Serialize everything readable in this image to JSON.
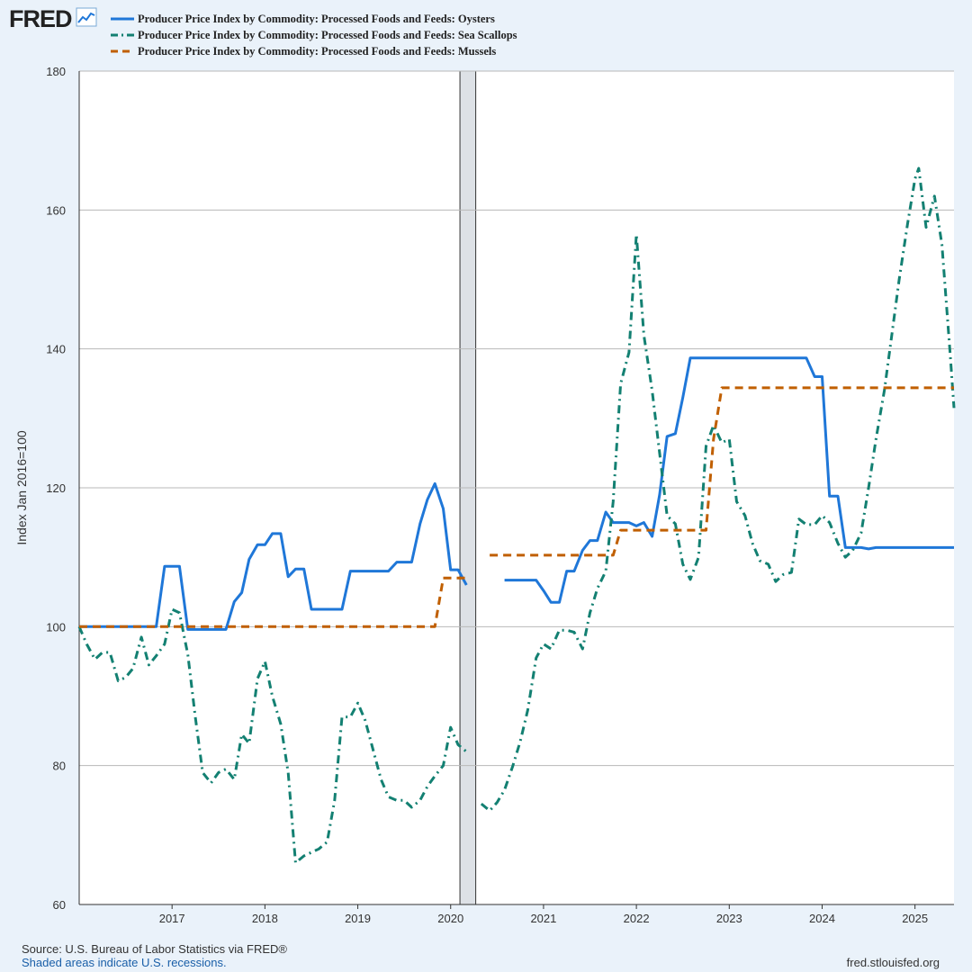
{
  "brand": {
    "name": "FRED",
    "icon": "line-chart-icon"
  },
  "chart_data": {
    "type": "line",
    "title": "",
    "ylabel": "Index Jan 2016=100",
    "xlabel": "",
    "ylim": [
      60,
      180
    ],
    "yticks": [
      60,
      80,
      100,
      120,
      140,
      160,
      180
    ],
    "xlim": [
      2016.0,
      2025.42
    ],
    "xticks": [
      2017,
      2018,
      2019,
      2020,
      2021,
      2022,
      2023,
      2024,
      2025
    ],
    "grid": "horizontal",
    "legend": "top",
    "recessions": [
      {
        "start": 2020.1,
        "end": 2020.27
      }
    ],
    "series": [
      {
        "name": "Producer Price Index by Commodity: Processed Foods and Feeds: Oysters",
        "color": "#1f77d8",
        "dash": "solid",
        "points": [
          [
            2016.0,
            100
          ],
          [
            2016.08,
            100
          ],
          [
            2016.17,
            100
          ],
          [
            2016.25,
            100
          ],
          [
            2016.33,
            100
          ],
          [
            2016.42,
            100
          ],
          [
            2016.5,
            100
          ],
          [
            2016.58,
            100
          ],
          [
            2016.67,
            100
          ],
          [
            2016.75,
            100
          ],
          [
            2016.83,
            100
          ],
          [
            2016.92,
            108.7
          ],
          [
            2017.0,
            108.7
          ],
          [
            2017.08,
            108.7
          ],
          [
            2017.17,
            99.6
          ],
          [
            2017.25,
            99.6
          ],
          [
            2017.33,
            99.6
          ],
          [
            2017.42,
            99.6
          ],
          [
            2017.5,
            99.6
          ],
          [
            2017.58,
            99.6
          ],
          [
            2017.67,
            103.6
          ],
          [
            2017.75,
            104.9
          ],
          [
            2017.83,
            109.7
          ],
          [
            2017.92,
            111.8
          ],
          [
            2018.0,
            111.8
          ],
          [
            2018.08,
            113.4
          ],
          [
            2018.17,
            113.4
          ],
          [
            2018.25,
            107.2
          ],
          [
            2018.33,
            108.3
          ],
          [
            2018.42,
            108.3
          ],
          [
            2018.5,
            102.5
          ],
          [
            2018.58,
            102.5
          ],
          [
            2018.67,
            102.5
          ],
          [
            2018.75,
            102.5
          ],
          [
            2018.83,
            102.5
          ],
          [
            2018.92,
            108.0
          ],
          [
            2019.0,
            108.0
          ],
          [
            2019.08,
            108.0
          ],
          [
            2019.17,
            108.0
          ],
          [
            2019.25,
            108.0
          ],
          [
            2019.33,
            108.0
          ],
          [
            2019.42,
            109.3
          ],
          [
            2019.5,
            109.3
          ],
          [
            2019.58,
            109.3
          ],
          [
            2019.67,
            114.8
          ],
          [
            2019.75,
            118.3
          ],
          [
            2019.83,
            120.6
          ],
          [
            2019.92,
            117.0
          ],
          [
            2020.0,
            108.2
          ],
          [
            2020.08,
            108.2
          ],
          [
            2020.17,
            106.0
          ],
          null,
          [
            2020.58,
            106.7
          ],
          [
            2020.67,
            106.7
          ],
          [
            2020.75,
            106.7
          ],
          [
            2020.83,
            106.7
          ],
          [
            2020.92,
            106.7
          ],
          [
            2021.0,
            105.2
          ],
          [
            2021.08,
            103.5
          ],
          [
            2021.17,
            103.5
          ],
          [
            2021.25,
            108.0
          ],
          [
            2021.33,
            108.0
          ],
          [
            2021.42,
            111.0
          ],
          [
            2021.5,
            112.4
          ],
          [
            2021.58,
            112.4
          ],
          [
            2021.67,
            116.5
          ],
          [
            2021.75,
            115.0
          ],
          [
            2021.83,
            115.0
          ],
          [
            2021.92,
            115.0
          ],
          [
            2022.0,
            114.5
          ],
          [
            2022.08,
            115.0
          ],
          [
            2022.17,
            113.0
          ],
          [
            2022.25,
            119.0
          ],
          [
            2022.33,
            127.4
          ],
          [
            2022.42,
            127.8
          ],
          [
            2022.5,
            133.0
          ],
          [
            2022.58,
            138.7
          ],
          [
            2022.67,
            138.7
          ],
          [
            2022.75,
            138.7
          ],
          [
            2022.83,
            138.7
          ],
          [
            2022.92,
            138.7
          ],
          [
            2023.0,
            138.7
          ],
          [
            2023.08,
            138.7
          ],
          [
            2023.17,
            138.7
          ],
          [
            2023.25,
            138.7
          ],
          [
            2023.33,
            138.7
          ],
          [
            2023.42,
            138.7
          ],
          [
            2023.5,
            138.7
          ],
          [
            2023.58,
            138.7
          ],
          [
            2023.67,
            138.7
          ],
          [
            2023.75,
            138.7
          ],
          [
            2023.83,
            138.7
          ],
          [
            2023.92,
            136.0
          ],
          [
            2024.0,
            136.0
          ],
          [
            2024.08,
            118.8
          ],
          [
            2024.17,
            118.8
          ],
          [
            2024.25,
            111.4
          ],
          [
            2024.33,
            111.4
          ],
          [
            2024.42,
            111.4
          ],
          [
            2024.5,
            111.2
          ],
          [
            2024.58,
            111.4
          ],
          [
            2024.67,
            111.4
          ],
          [
            2024.75,
            111.4
          ],
          [
            2024.83,
            111.4
          ],
          [
            2024.92,
            111.4
          ],
          [
            2025.0,
            111.4
          ],
          [
            2025.08,
            111.4
          ],
          [
            2025.17,
            111.4
          ],
          [
            2025.25,
            111.4
          ],
          [
            2025.33,
            111.4
          ],
          [
            2025.42,
            111.4
          ]
        ]
      },
      {
        "name": "Producer Price Index by Commodity: Processed Foods and Feeds: Sea Scallops",
        "color": "#138072",
        "dash": "dashdot",
        "points": [
          [
            2016.0,
            100
          ],
          [
            2016.08,
            97.5
          ],
          [
            2016.17,
            95.3
          ],
          [
            2016.25,
            96.3
          ],
          [
            2016.33,
            96.3
          ],
          [
            2016.42,
            92.2
          ],
          [
            2016.5,
            92.7
          ],
          [
            2016.58,
            94.0
          ],
          [
            2016.67,
            98.5
          ],
          [
            2016.75,
            94.5
          ],
          [
            2016.83,
            95.8
          ],
          [
            2016.92,
            97.5
          ],
          [
            2017.0,
            102.5
          ],
          [
            2017.08,
            102.0
          ],
          [
            2017.17,
            96.0
          ],
          [
            2017.25,
            87.0
          ],
          [
            2017.33,
            79.0
          ],
          [
            2017.42,
            77.5
          ],
          [
            2017.5,
            79.0
          ],
          [
            2017.58,
            79.5
          ],
          [
            2017.67,
            78.0
          ],
          [
            2017.75,
            84.5
          ],
          [
            2017.83,
            83.2
          ],
          [
            2017.92,
            92.5
          ],
          [
            2018.0,
            95.0
          ],
          [
            2018.08,
            90.0
          ],
          [
            2018.17,
            86.0
          ],
          [
            2018.25,
            79.0
          ],
          [
            2018.33,
            66.0
          ],
          [
            2018.42,
            67.0
          ],
          [
            2018.5,
            67.5
          ],
          [
            2018.58,
            68.0
          ],
          [
            2018.67,
            69.0
          ],
          [
            2018.75,
            75.0
          ],
          [
            2018.83,
            87.0
          ],
          [
            2018.92,
            87.0
          ],
          [
            2019.0,
            89.0
          ],
          [
            2019.08,
            86.5
          ],
          [
            2019.17,
            82.0
          ],
          [
            2019.25,
            78.0
          ],
          [
            2019.33,
            75.5
          ],
          [
            2019.42,
            75.0
          ],
          [
            2019.5,
            75.0
          ],
          [
            2019.58,
            74.0
          ],
          [
            2019.67,
            75.0
          ],
          [
            2019.75,
            77.0
          ],
          [
            2019.83,
            78.5
          ],
          [
            2019.92,
            80.0
          ],
          [
            2020.0,
            85.5
          ],
          [
            2020.08,
            83.0
          ],
          [
            2020.17,
            82.0
          ],
          null,
          [
            2020.33,
            74.5
          ],
          [
            2020.42,
            73.5
          ],
          [
            2020.5,
            74.7
          ],
          [
            2020.58,
            76.5
          ],
          [
            2020.67,
            80.0
          ],
          [
            2020.75,
            83.5
          ],
          [
            2020.83,
            88.0
          ],
          [
            2020.92,
            95.5
          ],
          [
            2021.0,
            97.5
          ],
          [
            2021.08,
            96.8
          ],
          [
            2021.17,
            99.5
          ],
          [
            2021.25,
            99.5
          ],
          [
            2021.33,
            99.2
          ],
          [
            2021.42,
            96.8
          ],
          [
            2021.5,
            102.0
          ],
          [
            2021.58,
            105.5
          ],
          [
            2021.67,
            108.0
          ],
          [
            2021.75,
            118.0
          ],
          [
            2021.83,
            135.0
          ],
          [
            2021.92,
            139.5
          ],
          [
            2022.0,
            156.5
          ],
          [
            2022.08,
            142.0
          ],
          [
            2022.17,
            134.0
          ],
          [
            2022.25,
            125.0
          ],
          [
            2022.33,
            116.0
          ],
          [
            2022.42,
            114.8
          ],
          [
            2022.5,
            109.0
          ],
          [
            2022.58,
            106.8
          ],
          [
            2022.67,
            110.0
          ],
          [
            2022.75,
            126.0
          ],
          [
            2022.83,
            129.0
          ],
          [
            2022.92,
            126.5
          ],
          [
            2023.0,
            127.0
          ],
          [
            2023.08,
            118.0
          ],
          [
            2023.17,
            116.0
          ],
          [
            2023.25,
            112.0
          ],
          [
            2023.33,
            109.5
          ],
          [
            2023.42,
            109.0
          ],
          [
            2023.5,
            106.5
          ],
          [
            2023.58,
            107.5
          ],
          [
            2023.67,
            107.8
          ],
          [
            2023.75,
            115.5
          ],
          [
            2023.83,
            114.7
          ],
          [
            2023.92,
            114.7
          ],
          [
            2024.0,
            116.0
          ],
          [
            2024.08,
            115.0
          ],
          [
            2024.17,
            112.0
          ],
          [
            2024.25,
            110.0
          ],
          [
            2024.33,
            111.0
          ],
          [
            2024.42,
            113.5
          ],
          [
            2024.5,
            120.0
          ],
          [
            2024.58,
            127.0
          ],
          [
            2024.67,
            134.0
          ],
          [
            2024.75,
            142.0
          ],
          [
            2024.83,
            150.0
          ],
          [
            2024.92,
            158.0
          ],
          [
            2025.0,
            164.5
          ],
          [
            2025.04,
            166.0
          ],
          [
            2025.12,
            157.5
          ],
          [
            2025.21,
            162.0
          ],
          [
            2025.29,
            155.0
          ],
          [
            2025.38,
            139.0
          ],
          [
            2025.42,
            131.5
          ]
        ]
      },
      {
        "name": "Producer Price Index by Commodity: Processed Foods and Feeds: Mussels",
        "color": "#c05f00",
        "dash": "dashed",
        "points": [
          [
            2016.0,
            100
          ],
          [
            2019.83,
            100
          ],
          [
            2019.92,
            107.0
          ],
          [
            2020.17,
            107.0
          ],
          null,
          [
            2020.42,
            110.3
          ],
          [
            2021.75,
            110.3
          ],
          [
            2021.83,
            113.9
          ],
          [
            2022.75,
            113.9
          ],
          [
            2022.83,
            127.0
          ],
          [
            2022.92,
            134.4
          ],
          [
            2025.42,
            134.4
          ]
        ]
      }
    ]
  },
  "footer": {
    "source": "Source: U.S. Bureau of Labor Statistics via FRED®",
    "note": "Shaded areas indicate U.S. recessions.",
    "url": "fred.stlouisfed.org"
  }
}
